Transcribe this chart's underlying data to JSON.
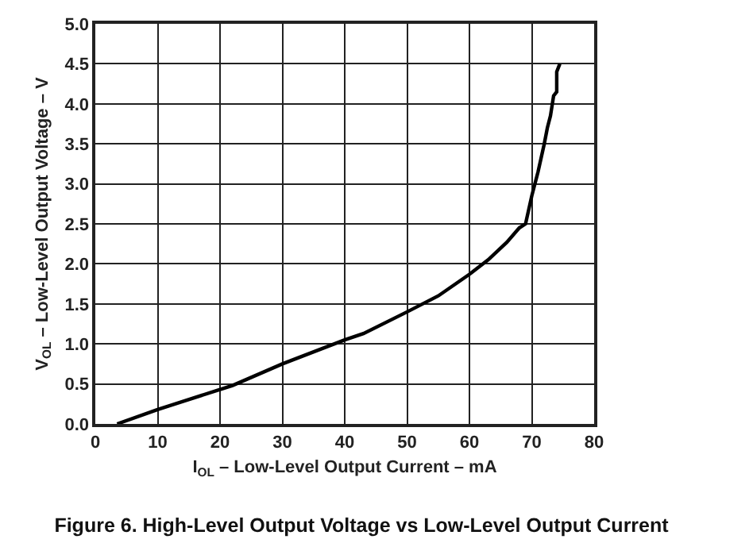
{
  "chart_data": {
    "type": "line",
    "title": "Figure 6. High-Level Output Voltage vs Low-Level Output Current",
    "xlabel": "I$_{OL}$ – Low-Level Output Current – mA",
    "ylabel": "V$_{OL}$ – Low-Level Output Voltage – V",
    "series": [
      {
        "color": "#000000",
        "x": [
          3.5,
          10,
          20,
          22,
          30,
          40,
          43,
          50,
          55,
          60,
          63,
          66,
          68,
          69,
          70,
          71,
          72,
          72.5,
          73,
          73.5,
          74,
          74,
          74.5
        ],
        "values": [
          0,
          0.18,
          0.43,
          0.48,
          0.75,
          1.05,
          1.13,
          1.4,
          1.6,
          1.87,
          2.05,
          2.27,
          2.45,
          2.5,
          2.85,
          3.15,
          3.5,
          3.7,
          3.85,
          4.1,
          4.15,
          4.4,
          4.5
        ]
      }
    ],
    "xlim": [
      0,
      80
    ],
    "xticks": [
      0,
      10,
      20,
      30,
      40,
      50,
      60,
      70,
      80
    ],
    "ylim": [
      0,
      5
    ],
    "yticks": [
      {
        "value": 0,
        "label": "0.0"
      },
      {
        "value": 0.5,
        "label": "0.5"
      },
      {
        "value": 1,
        "label": "1.0"
      },
      {
        "value": 1.5,
        "label": "1.5"
      },
      {
        "value": 2,
        "label": "2.0"
      },
      {
        "value": 2.5,
        "label": "2.5"
      },
      {
        "value": 3,
        "label": "3.0"
      },
      {
        "value": 3.5,
        "label": "3.5"
      },
      {
        "value": 4,
        "label": "4.0"
      },
      {
        "value": 4.5,
        "label": "4.5"
      },
      {
        "value": 5,
        "label": "5.0"
      }
    ],
    "grid": true,
    "marker": "none",
    "line_style": "solid"
  }
}
